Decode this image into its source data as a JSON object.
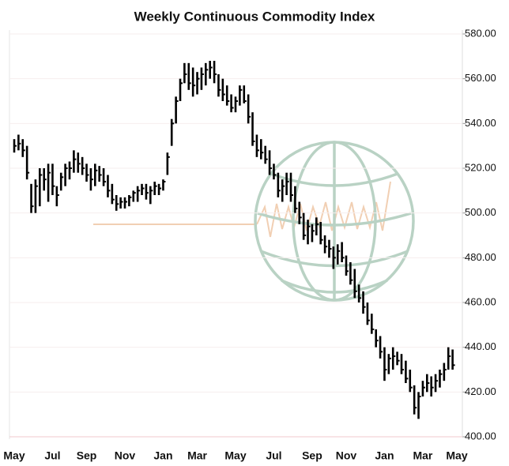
{
  "chart_data": {
    "type": "hlc",
    "title": "Weekly Continuous Commodity Index",
    "categories": [
      "May",
      null,
      null,
      null,
      null,
      null,
      null,
      null,
      null,
      "Jul",
      null,
      null,
      null,
      null,
      null,
      null,
      null,
      "Sep",
      null,
      null,
      null,
      null,
      null,
      null,
      null,
      null,
      "Nov",
      null,
      null,
      null,
      null,
      null,
      null,
      null,
      null,
      "Jan",
      null,
      null,
      null,
      null,
      null,
      null,
      null,
      "Mar",
      null,
      null,
      null,
      null,
      null,
      null,
      null,
      null,
      "May",
      null,
      null,
      null,
      null,
      null,
      null,
      null,
      null,
      "Jul",
      null,
      null,
      null,
      null,
      null,
      null,
      null,
      null,
      "Sep",
      null,
      null,
      null,
      null,
      null,
      null,
      null,
      "Nov",
      null,
      null,
      null,
      null,
      null,
      null,
      null,
      null,
      "Jan",
      null,
      null,
      null,
      null,
      null,
      null,
      null,
      null,
      "Mar",
      null,
      null,
      null,
      null,
      null,
      null,
      null,
      "May"
    ],
    "high": [
      533,
      535,
      533,
      530,
      513,
      515,
      520,
      520,
      522,
      522,
      512,
      518,
      522,
      523,
      528,
      527,
      525,
      522,
      520,
      522,
      521,
      520,
      517,
      513,
      508,
      507,
      507,
      508,
      510,
      512,
      513,
      513,
      512,
      514,
      513,
      515,
      527,
      542,
      552,
      560,
      567,
      567,
      565,
      563,
      565,
      567,
      568,
      568,
      562,
      560,
      557,
      553,
      552,
      557,
      557,
      553,
      545,
      535,
      533,
      530,
      528,
      522,
      518,
      515,
      518,
      518,
      512,
      505,
      500,
      497,
      495,
      498,
      496,
      490,
      488,
      485,
      486,
      487,
      481,
      478,
      475,
      468,
      465,
      460,
      455,
      448,
      445,
      440,
      437,
      440,
      438,
      437,
      434,
      430,
      423,
      420,
      425,
      428,
      427,
      428,
      430,
      433,
      440,
      439,
      null
    ],
    "low": [
      527,
      528,
      525,
      515,
      500,
      500,
      503,
      510,
      505,
      508,
      503,
      510,
      512,
      515,
      518,
      518,
      517,
      514,
      510,
      512,
      514,
      512,
      507,
      504,
      501,
      502,
      502,
      503,
      505,
      505,
      508,
      506,
      504,
      508,
      508,
      510,
      517,
      530,
      540,
      550,
      558,
      555,
      552,
      553,
      555,
      557,
      560,
      558,
      552,
      550,
      548,
      545,
      545,
      548,
      549,
      540,
      530,
      525,
      524,
      522,
      517,
      515,
      507,
      505,
      508,
      505,
      500,
      495,
      488,
      486,
      487,
      490,
      486,
      482,
      480,
      475,
      477,
      478,
      472,
      468,
      462,
      460,
      455,
      450,
      446,
      440,
      435,
      425,
      428,
      430,
      432,
      428,
      424,
      420,
      410,
      408,
      418,
      420,
      418,
      420,
      422,
      425,
      430,
      430,
      null
    ],
    "close": [
      530,
      531,
      528,
      518,
      503,
      512,
      517,
      515,
      518,
      512,
      508,
      516,
      520,
      520,
      524,
      522,
      520,
      517,
      515,
      519,
      517,
      514,
      510,
      506,
      504,
      505,
      505,
      507,
      509,
      510,
      511,
      509,
      510,
      512,
      511,
      514,
      525,
      540,
      550,
      558,
      562,
      558,
      557,
      560,
      562,
      564,
      565,
      562,
      555,
      553,
      550,
      547,
      550,
      555,
      550,
      543,
      532,
      528,
      527,
      524,
      520,
      517,
      510,
      512,
      514,
      508,
      502,
      498,
      490,
      494,
      492,
      495,
      488,
      485,
      484,
      480,
      483,
      480,
      474,
      470,
      465,
      462,
      458,
      452,
      448,
      443,
      438,
      430,
      435,
      436,
      434,
      430,
      426,
      422,
      413,
      418,
      422,
      424,
      422,
      425,
      428,
      430,
      436,
      432,
      null
    ],
    "color": "#000000",
    "ylim": [
      400,
      580
    ],
    "yticks": [
      {
        "value": 400,
        "label": "400.00"
      },
      {
        "value": 420,
        "label": "420.00"
      },
      {
        "value": 440,
        "label": "440.00"
      },
      {
        "value": 460,
        "label": "460.00"
      },
      {
        "value": 480,
        "label": "480.00"
      },
      {
        "value": 500,
        "label": "500.00"
      },
      {
        "value": 520,
        "label": "520.00"
      },
      {
        "value": 540,
        "label": "540.00"
      },
      {
        "value": 560,
        "label": "560.00"
      },
      {
        "value": 580,
        "label": "580.00"
      }
    ],
    "grid": true
  }
}
